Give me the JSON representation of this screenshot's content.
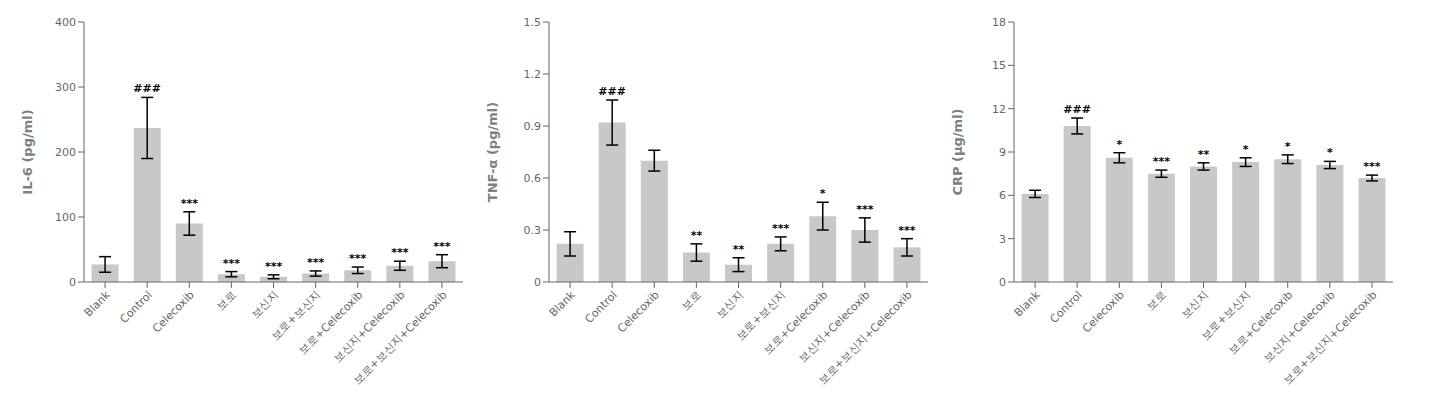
{
  "chart_data": [
    {
      "type": "bar",
      "ylabel": "IL-6 (pg/ml)",
      "categories": [
        "Blank",
        "Control",
        "Celecoxib",
        "보로",
        "보신지",
        "보로+보신지",
        "보로+Celecoxib",
        "보신지+Celecoxib",
        "보로+보신지+Celecoxib"
      ],
      "values": [
        27,
        237,
        90,
        12,
        8,
        13,
        18,
        25,
        32
      ],
      "errors": [
        12,
        47,
        18,
        4,
        3,
        4,
        5,
        7,
        10
      ],
      "annotations": [
        null,
        "###",
        "***",
        "***",
        "***",
        "***",
        "***",
        "***",
        "***"
      ],
      "color": "#c8c8c8",
      "ylim": [
        0,
        400
      ],
      "yticks": [
        0,
        100,
        200,
        300,
        400
      ],
      "grid": false
    },
    {
      "type": "bar",
      "ylabel": "TNF-α (pg/ml)",
      "categories": [
        "Blank",
        "Control",
        "Celecoxib",
        "보로",
        "보신지",
        "보로+보신지",
        "보로+Celecoxib",
        "보신지+Celecoxib",
        "보로+보신지+Celecoxib"
      ],
      "values": [
        0.22,
        0.92,
        0.7,
        0.17,
        0.1,
        0.22,
        0.38,
        0.3,
        0.2
      ],
      "errors": [
        0.07,
        0.13,
        0.06,
        0.05,
        0.04,
        0.04,
        0.08,
        0.07,
        0.05
      ],
      "annotations": [
        null,
        "###",
        null,
        "**",
        "**",
        "***",
        "*",
        "***",
        "***"
      ],
      "color": "#c8c8c8",
      "ylim": [
        0,
        1.5
      ],
      "yticks": [
        0,
        0.3,
        0.6,
        0.9,
        1.2,
        1.5
      ],
      "grid": false
    },
    {
      "type": "bar",
      "ylabel": "CRP (μg/ml)",
      "categories": [
        "Blank",
        "Control",
        "Celecoxib",
        "보로",
        "보신지",
        "보로+보신지",
        "보로+Celecoxib",
        "보신지+Celecoxib",
        "보로+보신지+Celecoxib"
      ],
      "values": [
        6.1,
        10.8,
        8.6,
        7.5,
        8.0,
        8.3,
        8.5,
        8.1,
        7.2
      ],
      "errors": [
        0.25,
        0.55,
        0.35,
        0.25,
        0.25,
        0.3,
        0.3,
        0.25,
        0.2
      ],
      "annotations": [
        null,
        "###",
        "*",
        "***",
        "**",
        "*",
        "*",
        "*",
        "***"
      ],
      "color": "#c8c8c8",
      "ylim": [
        0,
        18
      ],
      "yticks": [
        0,
        3,
        6,
        9,
        12,
        15,
        18
      ],
      "grid": false
    }
  ]
}
